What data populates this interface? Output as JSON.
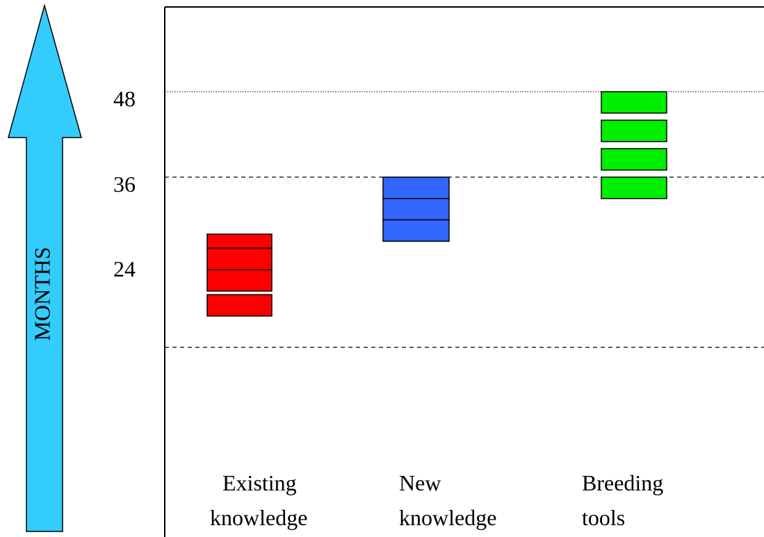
{
  "arrow": {
    "label": "MONTHS",
    "color": "#33ccff"
  },
  "y_ticks": [
    {
      "label": "48",
      "value": 48
    },
    {
      "label": "36",
      "value": 36
    },
    {
      "label": "24",
      "value": 24
    }
  ],
  "columns": [
    {
      "line1": "Existing",
      "line2": "knowledge",
      "color": "#ff0000",
      "blocks": [
        [
          26,
          28
        ],
        [
          23,
          26
        ],
        [
          20,
          23
        ],
        [
          19.5,
          16.5
        ]
      ]
    },
    {
      "line1": "New",
      "line2": "knowledge",
      "color": "#3366ff",
      "blocks": [
        [
          33,
          36
        ],
        [
          30,
          33
        ],
        [
          27,
          30
        ]
      ]
    },
    {
      "line1": "Breeding",
      "line2": "tools",
      "color": "#00ee00",
      "blocks": [
        [
          45,
          48
        ],
        [
          41,
          44
        ],
        [
          37,
          40
        ],
        [
          33,
          36
        ]
      ]
    }
  ]
}
